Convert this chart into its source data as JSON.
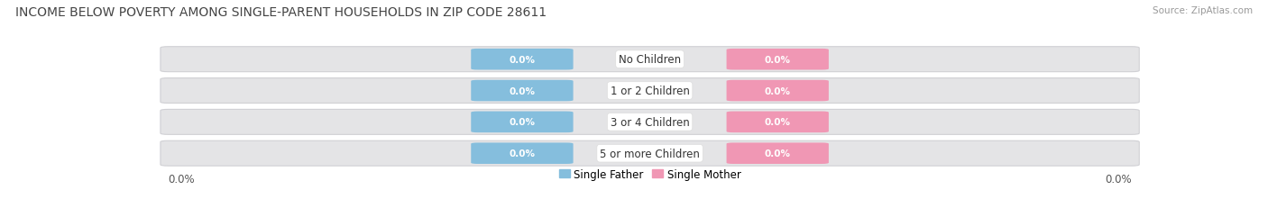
{
  "title": "INCOME BELOW POVERTY AMONG SINGLE-PARENT HOUSEHOLDS IN ZIP CODE 28611",
  "source": "Source: ZipAtlas.com",
  "categories": [
    "No Children",
    "1 or 2 Children",
    "3 or 4 Children",
    "5 or more Children"
  ],
  "single_father_values": [
    0.0,
    0.0,
    0.0,
    0.0
  ],
  "single_mother_values": [
    0.0,
    0.0,
    0.0,
    0.0
  ],
  "father_color": "#85bedd",
  "mother_color": "#f097b4",
  "bar_bg_color": "#e4e4e6",
  "bar_bg_edge_color": "#d0d0d4",
  "axis_label_left": "0.0%",
  "axis_label_right": "0.0%",
  "background_color": "#ffffff",
  "title_fontsize": 10,
  "source_fontsize": 7.5,
  "label_fontsize": 8.5,
  "legend_fontsize": 8.5,
  "value_fontsize": 7.5
}
